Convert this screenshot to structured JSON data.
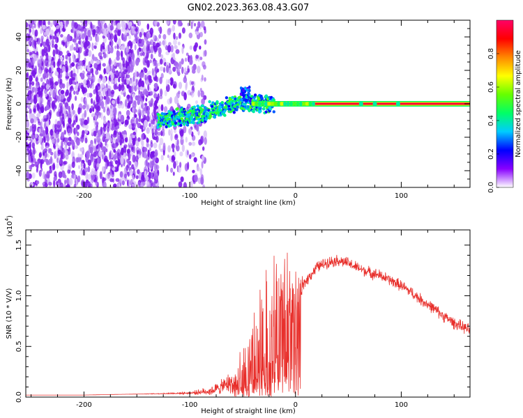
{
  "figure": {
    "title": "GN02.2023.363.08.43.G07"
  },
  "chart_data": [
    {
      "type": "heatmap",
      "xlabel": "Height of straight line (km)",
      "ylabel": "Frequency (Hz)",
      "xlim": [
        -255,
        165
      ],
      "ylim": [
        -50,
        50
      ],
      "x_ticks": [
        -200,
        -100,
        0,
        100
      ],
      "y_ticks": [
        -40,
        -20,
        0,
        20,
        40
      ],
      "grid": false,
      "noise_region_x": [
        -255,
        -100
      ],
      "signal_band_frequency_hz": 0,
      "ridge_x": [
        -130,
        -110,
        -90,
        -70,
        -55,
        -45,
        -30,
        -10,
        0,
        60,
        100,
        165
      ],
      "ridge_y": [
        -10,
        -8,
        -6,
        -3,
        0,
        1,
        0,
        0,
        0,
        0,
        0,
        0
      ],
      "colorbar": {
        "label": "Normalized spectral amplitude",
        "range": [
          0,
          1
        ],
        "ticks": [
          "0.0",
          "0.2",
          "0.4",
          "0.6",
          "0.8"
        ],
        "colors": [
          "#ffffff",
          "#8800ff",
          "#0000ff",
          "#00ccff",
          "#00ff66",
          "#66ff00",
          "#ffff00",
          "#ff8800",
          "#ff0000",
          "#ff0066"
        ]
      }
    },
    {
      "type": "line",
      "xlabel": "Height of straight line (km)",
      "ylabel": "SNR (10 * V/V)",
      "y_scale_label": "(x10",
      "y_scale_exponent": "4",
      "y_scale_suffix": ")",
      "xlim": [
        -255,
        165
      ],
      "ylim": [
        0,
        1.65
      ],
      "x_ticks": [
        -200,
        -100,
        0,
        100
      ],
      "y_ticks": [
        "0.0",
        "0.5",
        "1.0",
        "1.5"
      ],
      "color": "#e8302c",
      "x": [
        -255,
        -200,
        -150,
        -100,
        -80,
        -70,
        -60,
        -50,
        -45,
        -40,
        -35,
        -30,
        -25,
        -20,
        -15,
        -10,
        -5,
        0,
        5,
        10,
        20,
        30,
        40,
        50,
        60,
        70,
        80,
        90,
        100,
        110,
        120,
        130,
        140,
        150,
        165
      ],
      "y": [
        0.02,
        0.02,
        0.03,
        0.04,
        0.06,
        0.1,
        0.15,
        0.22,
        0.3,
        0.42,
        0.5,
        0.62,
        0.7,
        0.8,
        0.85,
        0.9,
        0.95,
        1.0,
        1.05,
        1.15,
        1.28,
        1.33,
        1.35,
        1.32,
        1.27,
        1.23,
        1.2,
        1.15,
        1.1,
        1.03,
        0.95,
        0.88,
        0.8,
        0.73,
        0.66
      ],
      "noise_amplitude": [
        0,
        0,
        0,
        0.01,
        0.04,
        0.06,
        0.1,
        0.2,
        0.3,
        0.4,
        0.5,
        0.55,
        0.6,
        0.6,
        0.55,
        0.5,
        0.4,
        0.3,
        0.1,
        0.05,
        0.05,
        0.05,
        0.05,
        0.05,
        0.05,
        0.05,
        0.05,
        0.05,
        0.05,
        0.05,
        0.05,
        0.05,
        0.05,
        0.05,
        0.05
      ]
    }
  ]
}
